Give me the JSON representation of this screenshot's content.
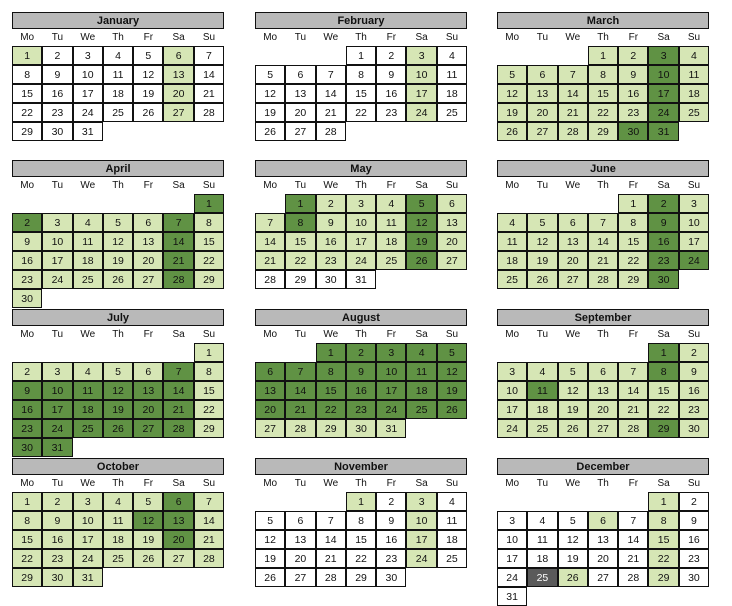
{
  "weekdays": [
    "Mo",
    "Tu",
    "We",
    "Th",
    "Fr",
    "Sa",
    "Su"
  ],
  "colors": {
    "light": "#d6e6b5",
    "dark": "#609244",
    "gray": "#5a5a5a",
    "header": "#b9b9b9"
  },
  "months": [
    {
      "name": "January",
      "offset": 0,
      "days": 31,
      "light": [
        1,
        6,
        13,
        20,
        27
      ],
      "dark": [],
      "gray": []
    },
    {
      "name": "February",
      "offset": 3,
      "days": 28,
      "light": [
        3,
        10,
        17,
        24
      ],
      "dark": [],
      "gray": []
    },
    {
      "name": "March",
      "offset": 3,
      "days": 31,
      "light": [
        1,
        2,
        4,
        5,
        6,
        7,
        8,
        9,
        11,
        12,
        13,
        14,
        15,
        16,
        18,
        19,
        20,
        21,
        22,
        23,
        25,
        26,
        27,
        28,
        29
      ],
      "dark": [
        3,
        10,
        17,
        24,
        30,
        31
      ],
      "gray": []
    },
    {
      "name": "April",
      "offset": 6,
      "days": 30,
      "light": [
        3,
        4,
        5,
        6,
        8,
        9,
        10,
        11,
        12,
        13,
        15,
        16,
        17,
        18,
        19,
        20,
        22,
        23,
        24,
        25,
        26,
        27,
        29,
        30
      ],
      "dark": [
        1,
        2,
        7,
        14,
        21,
        28
      ],
      "gray": []
    },
    {
      "name": "May",
      "offset": 1,
      "days": 31,
      "light": [
        2,
        3,
        4,
        6,
        7,
        9,
        10,
        11,
        13,
        14,
        15,
        16,
        17,
        18,
        20,
        21,
        22,
        23,
        24,
        25,
        27
      ],
      "dark": [
        1,
        5,
        8,
        12,
        19,
        26
      ],
      "gray": []
    },
    {
      "name": "June",
      "offset": 4,
      "days": 30,
      "light": [
        1,
        3,
        4,
        5,
        6,
        7,
        8,
        10,
        11,
        12,
        13,
        14,
        15,
        17,
        18,
        19,
        20,
        21,
        22,
        25,
        26,
        27,
        28,
        29
      ],
      "dark": [
        2,
        9,
        16,
        23,
        24,
        30
      ],
      "gray": []
    },
    {
      "name": "July",
      "offset": 6,
      "days": 31,
      "light": [
        1,
        2,
        3,
        4,
        5,
        6,
        8,
        15,
        22,
        29
      ],
      "dark": [
        7,
        9,
        10,
        11,
        12,
        13,
        14,
        16,
        17,
        18,
        19,
        20,
        21,
        23,
        24,
        25,
        26,
        27,
        28,
        30,
        31
      ],
      "gray": []
    },
    {
      "name": "August",
      "offset": 2,
      "days": 31,
      "light": [
        27,
        28,
        29,
        30,
        31
      ],
      "dark": [
        1,
        2,
        3,
        4,
        5,
        6,
        7,
        8,
        9,
        10,
        11,
        12,
        13,
        14,
        15,
        16,
        17,
        18,
        19,
        20,
        21,
        22,
        23,
        24,
        25,
        26
      ],
      "gray": []
    },
    {
      "name": "September",
      "offset": 5,
      "days": 30,
      "light": [
        2,
        3,
        4,
        5,
        6,
        7,
        9,
        10,
        12,
        13,
        14,
        15,
        16,
        17,
        18,
        19,
        20,
        21,
        22,
        23,
        24,
        25,
        26,
        27,
        28,
        30
      ],
      "dark": [
        1,
        8,
        11,
        29
      ],
      "gray": []
    },
    {
      "name": "October",
      "offset": 0,
      "days": 31,
      "light": [
        1,
        2,
        3,
        4,
        5,
        7,
        8,
        9,
        10,
        11,
        14,
        15,
        16,
        17,
        18,
        19,
        21,
        22,
        23,
        24,
        25,
        26,
        27,
        28,
        29,
        30,
        31
      ],
      "dark": [
        6,
        12,
        13,
        20
      ],
      "gray": []
    },
    {
      "name": "November",
      "offset": 3,
      "days": 30,
      "light": [
        1,
        3,
        10,
        17,
        24
      ],
      "dark": [],
      "gray": []
    },
    {
      "name": "December",
      "offset": 5,
      "days": 31,
      "light": [
        1,
        6,
        8,
        15,
        22,
        26,
        29
      ],
      "dark": [],
      "gray": [
        25
      ]
    }
  ]
}
